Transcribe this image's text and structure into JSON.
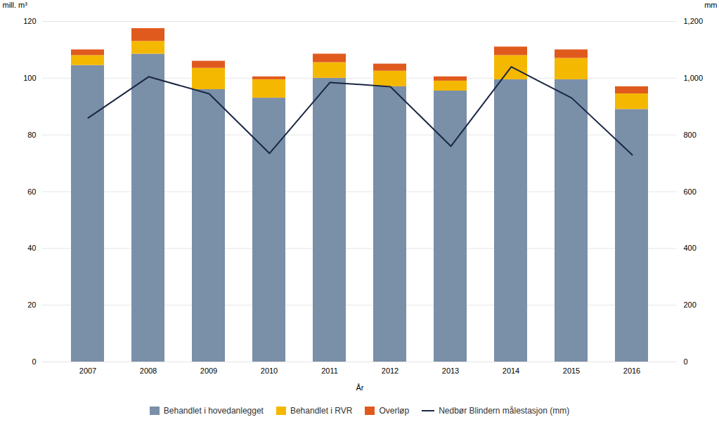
{
  "chart_data": {
    "type": "bar",
    "stacked": true,
    "categories": [
      "2007",
      "2008",
      "2009",
      "2010",
      "2011",
      "2012",
      "2013",
      "2014",
      "2015",
      "2016"
    ],
    "series": [
      {
        "name": "Behandlet i hovedanlegget",
        "color": "#7a8fa8",
        "values": [
          104.5,
          108.5,
          96.0,
          93.0,
          100.0,
          97.0,
          95.5,
          99.5,
          99.5,
          89.0
        ]
      },
      {
        "name": "Behandlet i RVR",
        "color": "#f5b800",
        "values": [
          3.5,
          4.5,
          7.5,
          6.5,
          5.5,
          5.5,
          3.5,
          8.5,
          7.5,
          5.5
        ]
      },
      {
        "name": "Overløp",
        "color": "#e05a1e",
        "values": [
          2.0,
          4.5,
          2.5,
          1.0,
          3.0,
          2.5,
          1.5,
          3.0,
          3.0,
          2.5
        ]
      },
      {
        "name": "Nedbør Blindern målestasjon (mm)",
        "type": "line",
        "axis": "y2",
        "color": "#1a2744",
        "values": [
          860,
          1005,
          945,
          735,
          985,
          970,
          760,
          1040,
          930,
          730
        ]
      }
    ],
    "xlabel": "År",
    "ylabel": "mill. m³",
    "y2label": "mm",
    "ylim": [
      0,
      120
    ],
    "yticks": [
      0,
      20,
      40,
      60,
      80,
      100,
      120
    ],
    "y2lim": [
      0,
      1200
    ],
    "y2ticks": [
      0,
      200,
      400,
      600,
      800,
      1000,
      1200
    ],
    "grid": true,
    "legend": "bottom"
  }
}
